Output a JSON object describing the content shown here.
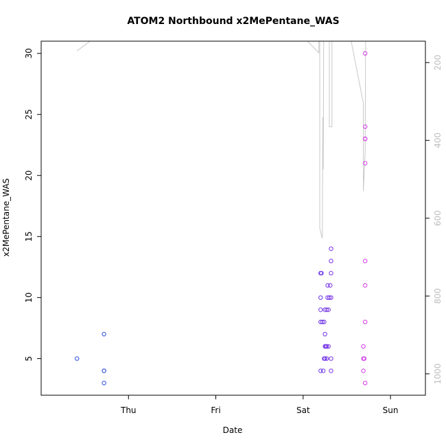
{
  "chart_data": {
    "type": "scatter",
    "title": "ATOM2 Northbound x2MePentane_WAS",
    "xlabel": "Date",
    "ylabel": "x2MePentane_WAS",
    "x_day_range": [
      -0.5,
      3.9
    ],
    "x_ticks": [
      {
        "label": "Thu",
        "day": 0.5
      },
      {
        "label": "Fri",
        "day": 1.5
      },
      {
        "label": "Sat",
        "day": 2.5
      },
      {
        "label": "Sun",
        "day": 3.5
      }
    ],
    "ylim": [
      2.0,
      31.0
    ],
    "y_ticks": [
      5,
      10,
      15,
      20,
      25,
      30
    ],
    "y2_range": [
      1055,
      145
    ],
    "y2_ticks": [
      200,
      400,
      600,
      800,
      1000
    ],
    "grid": false,
    "legend": "none",
    "colors": {
      "axis": "#000000",
      "altitude_line": "#c8c8c8",
      "right_axis_text": "#bdbdbd"
    },
    "series": [
      {
        "type": "scatter",
        "points": [
          {
            "day": -0.09,
            "value": 5,
            "color": "#2b4fe0"
          },
          {
            "day": 0.22,
            "value": 7,
            "color": "#2f4ee2"
          },
          {
            "day": 0.22,
            "value": 4,
            "color": "#2f4ee2"
          },
          {
            "day": 0.22,
            "value": 4,
            "color": "#2f4ee2"
          },
          {
            "day": 0.22,
            "value": 3,
            "color": "#2f4ee2"
          },
          {
            "day": 2.7,
            "value": 12,
            "color": "#6a35e6"
          },
          {
            "day": 2.7,
            "value": 10,
            "color": "#6a35e6"
          },
          {
            "day": 2.7,
            "value": 9,
            "color": "#6a35e6"
          },
          {
            "day": 2.7,
            "value": 8,
            "color": "#6a35e6"
          },
          {
            "day": 2.7,
            "value": 4,
            "color": "#6a35e6"
          },
          {
            "day": 2.71,
            "value": 12,
            "color": "#6a35e6"
          },
          {
            "day": 2.72,
            "value": 8,
            "color": "#6d33e6"
          },
          {
            "day": 2.73,
            "value": 4,
            "color": "#6d33e6"
          },
          {
            "day": 2.74,
            "value": 8,
            "color": "#6f33e6"
          },
          {
            "day": 2.74,
            "value": 5,
            "color": "#6f33e6"
          },
          {
            "day": 2.75,
            "value": 9,
            "color": "#7033e6"
          },
          {
            "day": 2.75,
            "value": 7,
            "color": "#7033e6"
          },
          {
            "day": 2.75,
            "value": 6,
            "color": "#7033e6"
          },
          {
            "day": 2.75,
            "value": 5,
            "color": "#7033e6"
          },
          {
            "day": 2.76,
            "value": 6,
            "color": "#7233e6"
          },
          {
            "day": 2.77,
            "value": 9,
            "color": "#7333e6"
          },
          {
            "day": 2.77,
            "value": 6,
            "color": "#7333e6"
          },
          {
            "day": 2.77,
            "value": 5,
            "color": "#7333e6"
          },
          {
            "day": 2.78,
            "value": 11,
            "color": "#7532e6"
          },
          {
            "day": 2.78,
            "value": 10,
            "color": "#7532e6"
          },
          {
            "day": 2.79,
            "value": 9,
            "color": "#7632e6"
          },
          {
            "day": 2.79,
            "value": 6,
            "color": "#7632e6"
          },
          {
            "day": 2.8,
            "value": 10,
            "color": "#7832e6"
          },
          {
            "day": 2.81,
            "value": 11,
            "color": "#7932e6"
          },
          {
            "day": 2.82,
            "value": 14,
            "color": "#7b32e6"
          },
          {
            "day": 2.82,
            "value": 13,
            "color": "#7b32e6"
          },
          {
            "day": 2.82,
            "value": 12,
            "color": "#7b32e6"
          },
          {
            "day": 2.82,
            "value": 10,
            "color": "#7b32e6"
          },
          {
            "day": 2.82,
            "value": 5,
            "color": "#7b32e6"
          },
          {
            "day": 2.82,
            "value": 4,
            "color": "#7b32e6"
          },
          {
            "day": 3.19,
            "value": 6,
            "color": "#cf3ae6"
          },
          {
            "day": 3.19,
            "value": 5,
            "color": "#cf3ae6"
          },
          {
            "day": 3.19,
            "value": 4,
            "color": "#cf3ae6"
          },
          {
            "day": 3.2,
            "value": 5,
            "color": "#cf3ae6"
          },
          {
            "day": 3.21,
            "value": 30,
            "color": "#d43ae6"
          },
          {
            "day": 3.21,
            "value": 24,
            "color": "#d43ae6"
          },
          {
            "day": 3.21,
            "value": 23,
            "color": "#d43ae6"
          },
          {
            "day": 3.21,
            "value": 23,
            "color": "#d43ae6"
          },
          {
            "day": 3.21,
            "value": 21,
            "color": "#d43ae6"
          },
          {
            "day": 3.21,
            "value": 13,
            "color": "#d43ae6"
          },
          {
            "day": 3.21,
            "value": 11,
            "color": "#d43ae6"
          },
          {
            "day": 3.21,
            "value": 8,
            "color": "#d43ae6"
          },
          {
            "day": 3.21,
            "value": 3,
            "color": "#d43ae6"
          }
        ]
      },
      {
        "type": "line",
        "axis": "right",
        "points": [
          {
            "day": -0.09,
            "y2": 170
          },
          {
            "day": 0.06,
            "y2": 145
          },
          {
            "day": 2.08,
            "y2": 145
          },
          {
            "day": 2.25,
            "y2": 145
          },
          {
            "day": 2.55,
            "y2": 145
          },
          {
            "day": 2.68,
            "y2": 175
          },
          {
            "day": 2.68,
            "y2": 145
          },
          {
            "day": 2.69,
            "y2": 145
          },
          {
            "day": 2.69,
            "y2": 625
          },
          {
            "day": 2.715,
            "y2": 650
          },
          {
            "day": 2.72,
            "y2": 650
          },
          {
            "day": 2.725,
            "y2": 340
          },
          {
            "day": 2.73,
            "y2": 475
          },
          {
            "day": 2.735,
            "y2": 145
          },
          {
            "day": 2.8,
            "y2": 145
          },
          {
            "day": 2.8,
            "y2": 365
          },
          {
            "day": 2.83,
            "y2": 365
          },
          {
            "day": 2.83,
            "y2": 145
          },
          {
            "day": 2.93,
            "y2": 145
          },
          {
            "day": 3.05,
            "y2": 145
          },
          {
            "day": 3.19,
            "y2": 305
          },
          {
            "day": 3.19,
            "y2": 530
          },
          {
            "day": 3.21,
            "y2": 430
          },
          {
            "day": 3.215,
            "y2": 145
          }
        ]
      }
    ]
  }
}
